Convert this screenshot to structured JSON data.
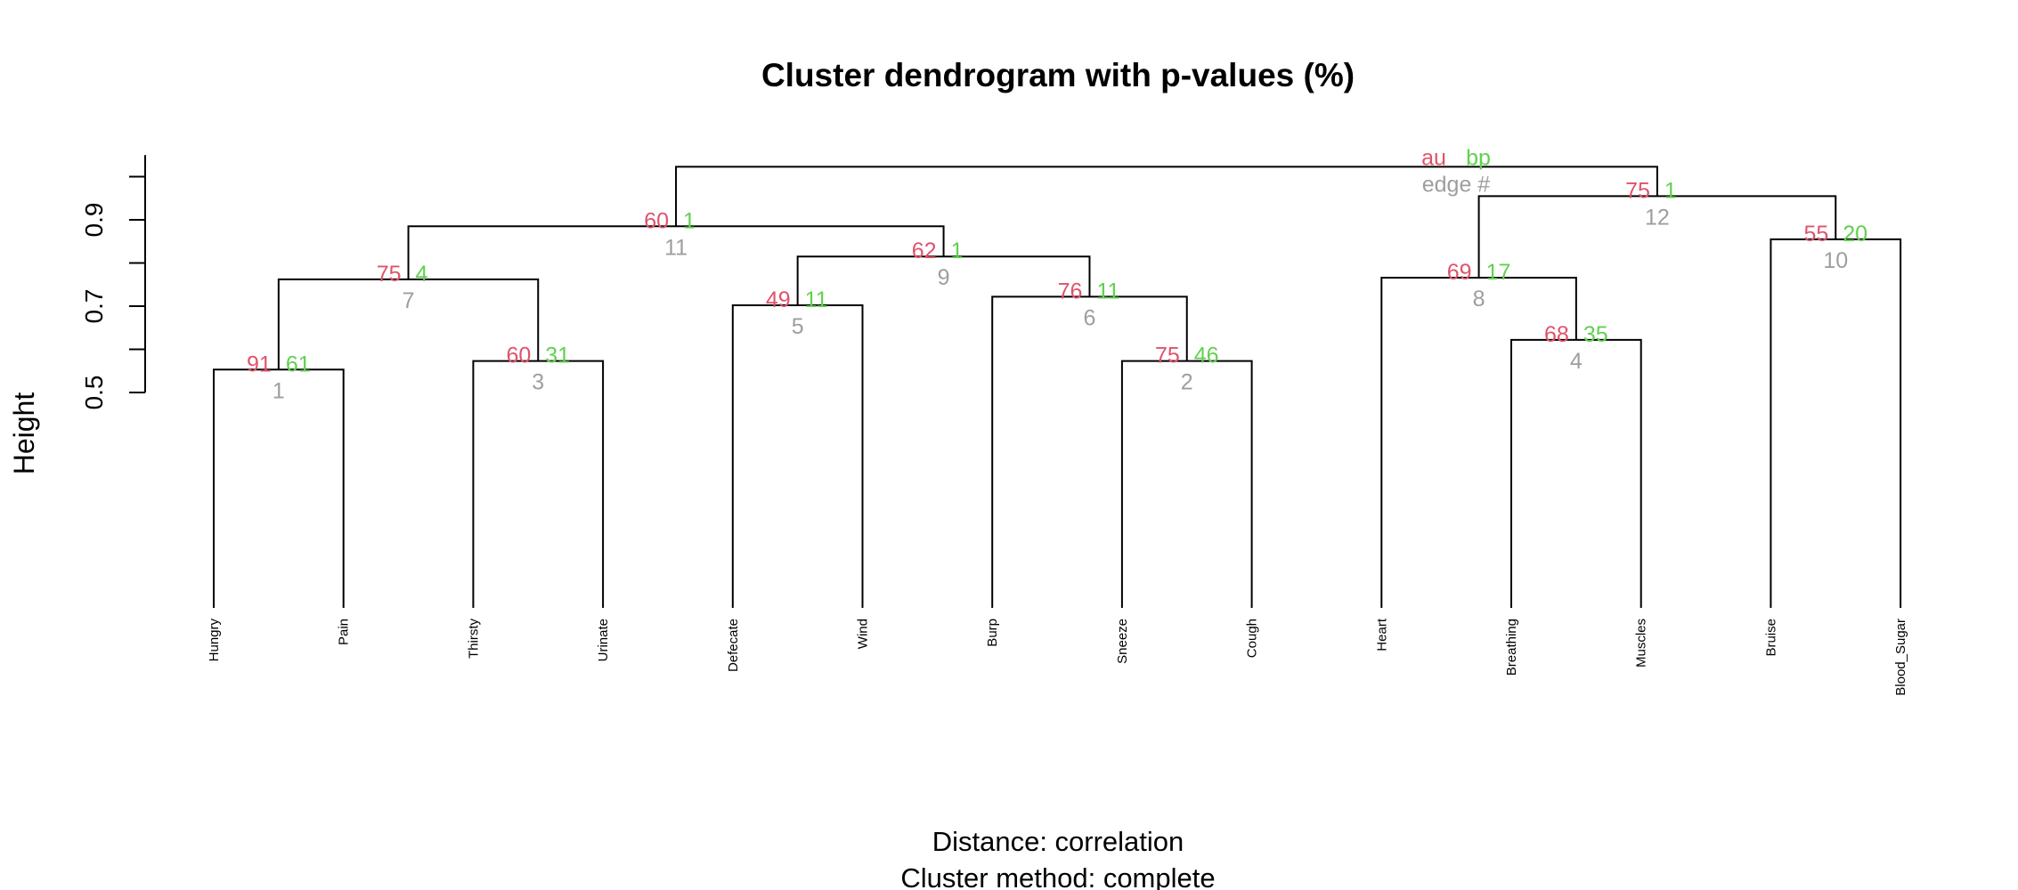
{
  "colors": {
    "au": "#DF536B",
    "bp": "#61D04F",
    "edge": "#9E9E9E",
    "line": "#000000"
  },
  "chart_data": {
    "type": "dendrogram",
    "title": "Cluster dendrogram with p-values (%)",
    "ylabel": "Height",
    "yticks": [
      "0.5",
      "0.7",
      "0.9"
    ],
    "ytick_values": [
      0.5,
      0.7,
      0.9
    ],
    "ylim": [
      0.5,
      1.0
    ],
    "leaves": [
      "Hungry",
      "Pain",
      "Thirsty",
      "Urinate",
      "Defecate",
      "Wind",
      "Burp",
      "Sneeze",
      "Cough",
      "Heart",
      "Breathing",
      "Muscles",
      "Bruise",
      "Blood_Sugar"
    ],
    "merges": [
      {
        "id": "1",
        "left": "leaf:1",
        "right": "leaf:2",
        "height": 0.553,
        "au": "91",
        "bp": "61",
        "edge": "1"
      },
      {
        "id": "2",
        "left": "leaf:8",
        "right": "leaf:9",
        "height": 0.573,
        "au": "75",
        "bp": "46",
        "edge": "2"
      },
      {
        "id": "3",
        "left": "leaf:3",
        "right": "leaf:4",
        "height": 0.573,
        "au": "60",
        "bp": "31",
        "edge": "3"
      },
      {
        "id": "4",
        "left": "leaf:11",
        "right": "leaf:12",
        "height": 0.622,
        "au": "68",
        "bp": "35",
        "edge": "4"
      },
      {
        "id": "5",
        "left": "leaf:5",
        "right": "leaf:6",
        "height": 0.702,
        "au": "49",
        "bp": "11",
        "edge": "5"
      },
      {
        "id": "6",
        "left": "leaf:7",
        "right": "node:2",
        "height": 0.722,
        "au": "76",
        "bp": "11",
        "edge": "6"
      },
      {
        "id": "7",
        "left": "node:1",
        "right": "node:3",
        "height": 0.762,
        "au": "75",
        "bp": "4",
        "edge": "7"
      },
      {
        "id": "8",
        "left": "leaf:10",
        "right": "node:4",
        "height": 0.766,
        "au": "69",
        "bp": "17",
        "edge": "8"
      },
      {
        "id": "9",
        "left": "node:5",
        "right": "node:6",
        "height": 0.815,
        "au": "62",
        "bp": "1",
        "edge": "9"
      },
      {
        "id": "10",
        "left": "leaf:13",
        "right": "leaf:14",
        "height": 0.855,
        "au": "55",
        "bp": "20",
        "edge": "10"
      },
      {
        "id": "11",
        "left": "node:7",
        "right": "node:9",
        "height": 0.885,
        "au": "60",
        "bp": "1",
        "edge": "11"
      },
      {
        "id": "12",
        "left": "node:8",
        "right": "node:10",
        "height": 0.955,
        "au": "75",
        "bp": "1",
        "edge": "12"
      },
      {
        "id": "13",
        "left": "node:11",
        "right": "node:12",
        "height": 1.023
      }
    ],
    "legend": {
      "au": "au",
      "bp": "bp",
      "edge": "edge #"
    },
    "subtitle": [
      "Distance:  correlation",
      "Cluster method: complete"
    ]
  }
}
